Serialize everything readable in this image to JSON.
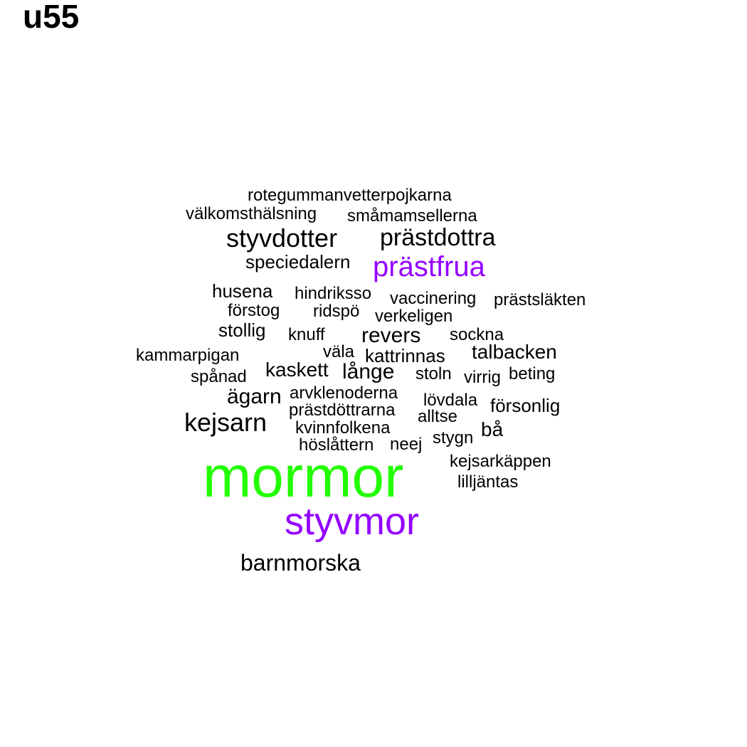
{
  "title": "u55",
  "colors": {
    "black": "#000000",
    "purple": "#9400ff",
    "green": "#22ff00"
  },
  "words": [
    {
      "text": "rotegummanvetterpojkarna",
      "color": "black"
    },
    {
      "text": "välkomsthälsning",
      "color": "black"
    },
    {
      "text": "småmamsellerna",
      "color": "black"
    },
    {
      "text": "styvdotter",
      "color": "black"
    },
    {
      "text": "prästdottra",
      "color": "black"
    },
    {
      "text": "speciedalern",
      "color": "black"
    },
    {
      "text": "prästfrua",
      "color": "purple"
    },
    {
      "text": "husena",
      "color": "black"
    },
    {
      "text": "hindriksso",
      "color": "black"
    },
    {
      "text": "vaccinering",
      "color": "black"
    },
    {
      "text": "prästsläkten",
      "color": "black"
    },
    {
      "text": "förstog",
      "color": "black"
    },
    {
      "text": "ridspö",
      "color": "black"
    },
    {
      "text": "verkeligen",
      "color": "black"
    },
    {
      "text": "stollig",
      "color": "black"
    },
    {
      "text": "knuff",
      "color": "black"
    },
    {
      "text": "revers",
      "color": "black"
    },
    {
      "text": "sockna",
      "color": "black"
    },
    {
      "text": "kammarpigan",
      "color": "black"
    },
    {
      "text": "väla",
      "color": "black"
    },
    {
      "text": "kattrinnas",
      "color": "black"
    },
    {
      "text": "talbacken",
      "color": "black"
    },
    {
      "text": "spånad",
      "color": "black"
    },
    {
      "text": "kaskett",
      "color": "black"
    },
    {
      "text": "långe",
      "color": "black"
    },
    {
      "text": "stoln",
      "color": "black"
    },
    {
      "text": "virrig",
      "color": "black"
    },
    {
      "text": "beting",
      "color": "black"
    },
    {
      "text": "ägarn",
      "color": "black"
    },
    {
      "text": "arvklenoderna",
      "color": "black"
    },
    {
      "text": "lövdala",
      "color": "black"
    },
    {
      "text": "försonlig",
      "color": "black"
    },
    {
      "text": "prästdöttrarna",
      "color": "black"
    },
    {
      "text": "alltse",
      "color": "black"
    },
    {
      "text": "kejsarn",
      "color": "black"
    },
    {
      "text": "kvinnfolkena",
      "color": "black"
    },
    {
      "text": "bå",
      "color": "black"
    },
    {
      "text": "stygn",
      "color": "black"
    },
    {
      "text": "höslåttern",
      "color": "black"
    },
    {
      "text": "neej",
      "color": "black"
    },
    {
      "text": "kejsarkäppen",
      "color": "black"
    },
    {
      "text": "mormor",
      "color": "green"
    },
    {
      "text": "lilljäntas",
      "color": "black"
    },
    {
      "text": "styvmor",
      "color": "purple"
    },
    {
      "text": "barnmorska",
      "color": "black"
    }
  ]
}
